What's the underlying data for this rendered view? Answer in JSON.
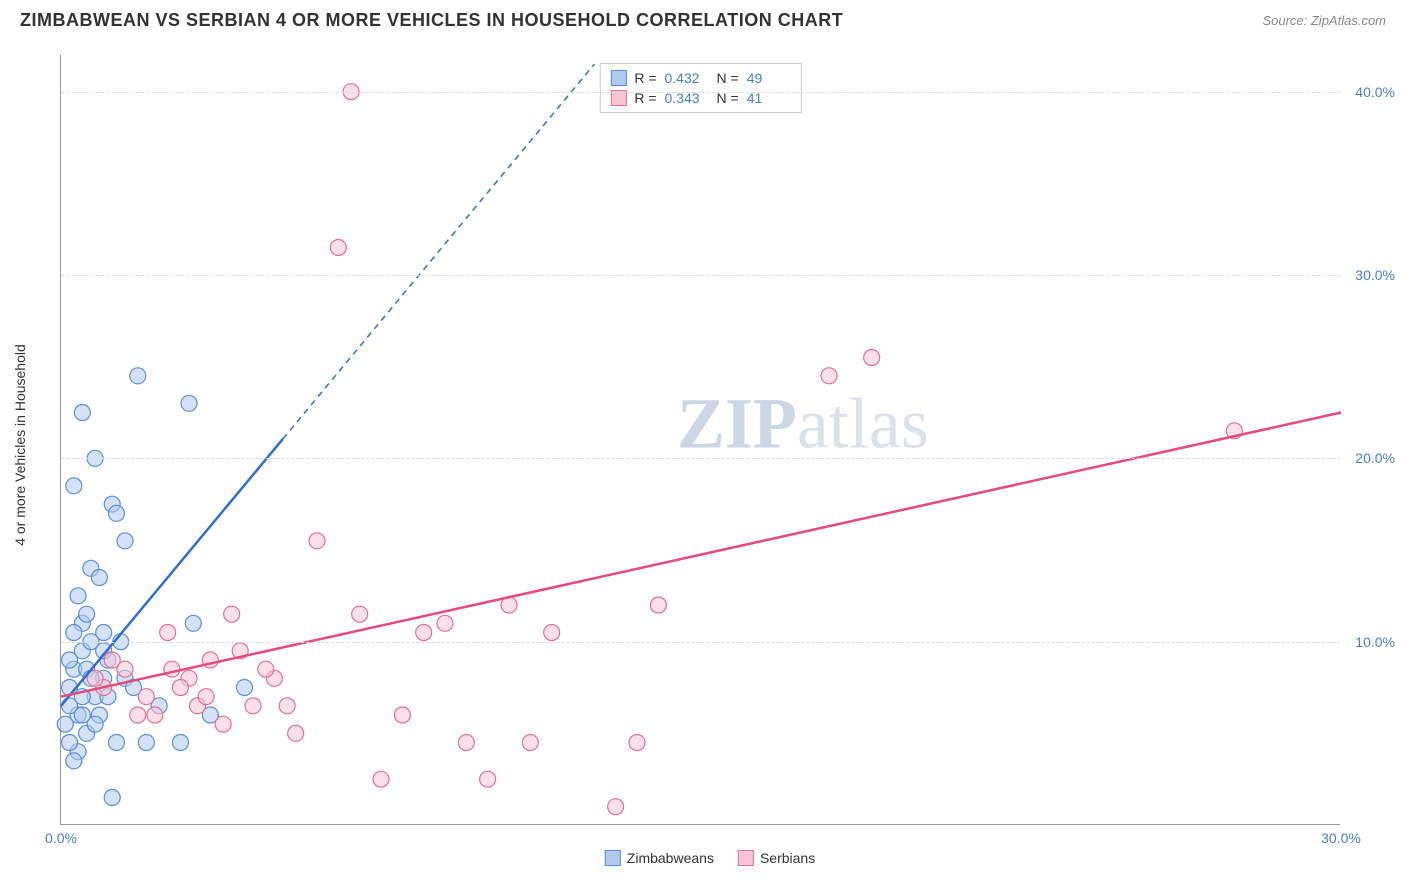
{
  "header": {
    "title": "ZIMBABWEAN VS SERBIAN 4 OR MORE VEHICLES IN HOUSEHOLD CORRELATION CHART",
    "source": "Source: ZipAtlas.com"
  },
  "watermark": {
    "zip": "ZIP",
    "atlas": "atlas"
  },
  "chart": {
    "type": "scatter",
    "y_axis_label": "4 or more Vehicles in Household",
    "background_color": "#ffffff",
    "grid_color": "#dddddd",
    "axis_color": "#999999",
    "tick_label_color": "#4a7fc4",
    "x_range": [
      0,
      30
    ],
    "y_range": [
      0,
      42
    ],
    "y_ticks": [
      10,
      20,
      30,
      40
    ],
    "y_tick_labels": [
      "10.0%",
      "20.0%",
      "30.0%",
      "40.0%"
    ],
    "x_ticks": [
      0,
      30
    ],
    "x_tick_labels": [
      "0.0%",
      "30.0%"
    ],
    "marker_radius": 8,
    "marker_opacity": 0.55,
    "series": [
      {
        "name": "Zimbabweans",
        "color_fill": "#aecbef",
        "color_stroke": "#5b8fd6",
        "line_color": "#2f6fd0",
        "line_solid_until_x": 5.2,
        "regression": {
          "x1": 0,
          "y1": 6.5,
          "x2": 12.5,
          "y2": 41.5
        },
        "points": [
          [
            0.2,
            7.5
          ],
          [
            0.3,
            8.5
          ],
          [
            0.4,
            6.0
          ],
          [
            0.5,
            9.5
          ],
          [
            0.6,
            5.0
          ],
          [
            0.3,
            18.5
          ],
          [
            0.5,
            22.5
          ],
          [
            0.7,
            14.0
          ],
          [
            0.8,
            20.0
          ],
          [
            1.0,
            10.5
          ],
          [
            1.2,
            17.5
          ],
          [
            1.3,
            17.0
          ],
          [
            0.9,
            13.5
          ],
          [
            1.5,
            15.5
          ],
          [
            1.8,
            24.5
          ],
          [
            0.4,
            4.0
          ],
          [
            0.5,
            11.0
          ],
          [
            0.2,
            6.5
          ],
          [
            0.8,
            7.0
          ],
          [
            1.0,
            8.0
          ],
          [
            1.1,
            9.0
          ],
          [
            1.3,
            4.5
          ],
          [
            1.5,
            8.0
          ],
          [
            1.7,
            7.5
          ],
          [
            0.3,
            3.5
          ],
          [
            0.6,
            8.5
          ],
          [
            0.7,
            10.0
          ],
          [
            2.0,
            4.5
          ],
          [
            2.3,
            6.5
          ],
          [
            2.8,
            4.5
          ],
          [
            3.0,
            23.0
          ],
          [
            3.1,
            11.0
          ],
          [
            3.5,
            6.0
          ],
          [
            4.3,
            7.5
          ],
          [
            1.2,
            1.5
          ],
          [
            0.1,
            5.5
          ],
          [
            0.2,
            9.0
          ],
          [
            0.4,
            12.5
          ],
          [
            0.6,
            11.5
          ],
          [
            0.9,
            6.0
          ],
          [
            0.3,
            10.5
          ],
          [
            0.5,
            7.0
          ],
          [
            0.7,
            8.0
          ],
          [
            1.0,
            9.5
          ],
          [
            1.4,
            10.0
          ],
          [
            0.8,
            5.5
          ],
          [
            0.2,
            4.5
          ],
          [
            0.5,
            6.0
          ],
          [
            1.1,
            7.0
          ]
        ]
      },
      {
        "name": "Serbians",
        "color_fill": "#f8c6d4",
        "color_stroke": "#e66f93",
        "line_color": "#e94a7b",
        "regression": {
          "x1": 0,
          "y1": 7.0,
          "x2": 30,
          "y2": 22.5
        },
        "points": [
          [
            1.5,
            8.5
          ],
          [
            2.0,
            7.0
          ],
          [
            2.5,
            10.5
          ],
          [
            3.0,
            8.0
          ],
          [
            3.5,
            9.0
          ],
          [
            4.0,
            11.5
          ],
          [
            4.5,
            6.5
          ],
          [
            5.0,
            8.0
          ],
          [
            5.5,
            5.0
          ],
          [
            6.0,
            15.5
          ],
          [
            6.5,
            31.5
          ],
          [
            6.8,
            40.0
          ],
          [
            7.0,
            11.5
          ],
          [
            7.5,
            2.5
          ],
          [
            8.0,
            6.0
          ],
          [
            8.5,
            10.5
          ],
          [
            9.0,
            11.0
          ],
          [
            9.5,
            4.5
          ],
          [
            10.0,
            2.5
          ],
          [
            10.5,
            12.0
          ],
          [
            11.0,
            4.5
          ],
          [
            11.5,
            10.5
          ],
          [
            13.0,
            1.0
          ],
          [
            13.5,
            4.5
          ],
          [
            14.0,
            12.0
          ],
          [
            18.0,
            24.5
          ],
          [
            19.0,
            25.5
          ],
          [
            27.5,
            21.5
          ],
          [
            2.2,
            6.0
          ],
          [
            2.8,
            7.5
          ],
          [
            3.2,
            6.5
          ],
          [
            3.8,
            5.5
          ],
          [
            4.2,
            9.5
          ],
          [
            1.0,
            7.5
          ],
          [
            1.8,
            6.0
          ],
          [
            0.8,
            8.0
          ],
          [
            1.2,
            9.0
          ],
          [
            2.6,
            8.5
          ],
          [
            3.4,
            7.0
          ],
          [
            4.8,
            8.5
          ],
          [
            5.3,
            6.5
          ]
        ]
      }
    ],
    "stats_box": {
      "rows": [
        {
          "swatch_fill": "#aecbef",
          "swatch_stroke": "#5b8fd6",
          "r_label": "R =",
          "r": "0.432",
          "n_label": "N =",
          "n": "49"
        },
        {
          "swatch_fill": "#f8c6d4",
          "swatch_stroke": "#e66f93",
          "r_label": "R =",
          "r": "0.343",
          "n_label": "N =",
          "n": "41"
        }
      ]
    },
    "bottom_legend": [
      {
        "swatch_fill": "#aecbef",
        "swatch_stroke": "#5b8fd6",
        "label": "Zimbabweans"
      },
      {
        "swatch_fill": "#f8c6d4",
        "swatch_stroke": "#e66f93",
        "label": "Serbians"
      }
    ]
  }
}
